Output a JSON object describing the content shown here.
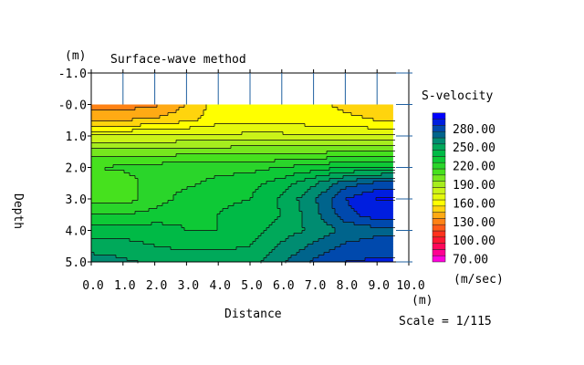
{
  "chart_data": {
    "type": "heatmap",
    "subtype": "contour",
    "title": "Surface-wave method",
    "xlabel": "Distance",
    "ylabel": "Depth",
    "x_unit": "(m)",
    "y_unit": "(m)",
    "scale_text": "Scale = 1/115",
    "xlim": [
      0,
      10
    ],
    "ylim": [
      -1,
      5
    ],
    "y_inverted": true,
    "x_tick_labels": [
      "0.0",
      "1.0",
      "2.0",
      "3.0",
      "4.0",
      "5.0",
      "6.0",
      "7.0",
      "8.0",
      "9.0",
      "10.0"
    ],
    "y_tick_labels": [
      "-1.0",
      "-0.0",
      "1.0",
      "2.0",
      "3.0",
      "4.0",
      "5.0"
    ],
    "colorbar": {
      "title": "S-velocity",
      "unit": "(m/sec)",
      "min": 70,
      "max": 300,
      "step": 10,
      "tick_labels": [
        "280.00",
        "250.00",
        "220.00",
        "190.00",
        "160.00",
        "130.00",
        "100.00",
        "70.00"
      ]
    },
    "grid_x": [
      0,
      1,
      2,
      3,
      4,
      5,
      6,
      7,
      8,
      9,
      9.5
    ],
    "grid_depth": [
      0,
      0.5,
      1,
      1.5,
      2,
      2.5,
      3,
      3.5,
      4,
      4.5,
      5
    ],
    "velocity": [
      [
        135,
        135,
        138,
        150,
        165,
        168,
        168,
        162,
        158,
        156,
        156
      ],
      [
        150,
        150,
        152,
        158,
        165,
        166,
        166,
        164,
        162,
        160,
        160
      ],
      [
        180,
        180,
        181,
        182,
        183,
        183,
        183,
        182,
        181,
        180,
        180
      ],
      [
        205,
        205,
        205,
        206,
        207,
        208,
        208,
        208,
        210,
        212,
        212
      ],
      [
        220,
        222,
        225,
        226,
        226,
        227,
        230,
        235,
        240,
        242,
        242
      ],
      [
        210,
        214,
        226,
        228,
        233,
        236,
        245,
        258,
        275,
        283,
        285
      ],
      [
        215,
        215,
        225,
        234,
        238,
        240,
        252,
        268,
        290,
        300,
        300
      ],
      [
        230,
        230,
        234,
        238,
        240,
        244,
        250,
        266,
        286,
        296,
        296
      ],
      [
        245,
        245,
        245,
        240,
        240,
        245,
        255,
        262,
        272,
        276,
        276
      ],
      [
        255,
        254,
        250,
        248,
        248,
        250,
        262,
        272,
        282,
        286,
        286
      ],
      [
        266,
        262,
        258,
        255,
        255,
        256,
        268,
        282,
        290,
        292,
        292
      ]
    ],
    "colors": {
      "low": "#ff00ff",
      "mid": "#ffff00",
      "high": "#0000ff"
    }
  }
}
